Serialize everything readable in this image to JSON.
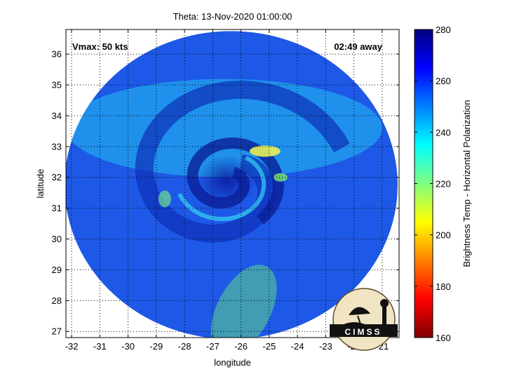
{
  "chart_data": {
    "type": "heatmap",
    "title": "Theta: 13-Nov-2020 01:00:00",
    "xlabel": "longitude",
    "ylabel": "latitude",
    "xlim": [
      -32.2,
      -20.4
    ],
    "ylim": [
      26.8,
      36.8
    ],
    "x_ticks": [
      -32,
      -31,
      -30,
      -29,
      -28,
      -27,
      -26,
      -25,
      -24,
      -23,
      -22,
      -21
    ],
    "y_ticks": [
      27,
      28,
      29,
      30,
      31,
      32,
      33,
      34,
      35,
      36
    ],
    "grid": true,
    "annotations": {
      "vmax": "Vmax: 50 kts",
      "time_away": "02:49 away"
    },
    "swath": {
      "center_lon": -26.35,
      "center_lat": 31.75,
      "radius_deg_lon": 5.9,
      "radius_deg_lat": 5.0
    },
    "storm_center": {
      "lon": -26.5,
      "lat": 31.9
    },
    "colorbar": {
      "label": "Brightness Temp - Horizontal Polarization",
      "range": [
        160,
        280
      ],
      "ticks": [
        160,
        180,
        200,
        220,
        240,
        260,
        280
      ],
      "colormap": "jet"
    },
    "logo": "CIMSS"
  }
}
